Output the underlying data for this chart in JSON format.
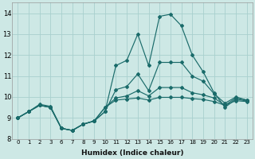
{
  "xlabel": "Humidex (Indice chaleur)",
  "bg_color": "#cde8e5",
  "grid_color": "#a8d0ce",
  "line_color": "#1a6b6a",
  "x_labels": [
    "0",
    "1",
    "2",
    "3",
    "6",
    "7",
    "8",
    "9",
    "10",
    "11",
    "12",
    "13",
    "14",
    "15",
    "16",
    "17",
    "18",
    "19",
    "20",
    "21",
    "22",
    "23"
  ],
  "ylim": [
    8.0,
    14.5
  ],
  "yticks": [
    8,
    9,
    10,
    11,
    12,
    13,
    14
  ],
  "lines": [
    {
      "y": [
        9.0,
        9.3,
        9.6,
        9.5,
        8.5,
        8.4,
        8.7,
        8.85,
        9.3,
        11.5,
        11.75,
        13.0,
        11.5,
        13.85,
        13.95,
        13.4,
        12.0,
        11.2,
        10.2,
        9.5,
        9.9,
        9.8
      ]
    },
    {
      "y": [
        9.0,
        9.3,
        9.6,
        9.5,
        8.5,
        8.4,
        8.7,
        8.85,
        9.3,
        10.35,
        10.5,
        11.1,
        10.3,
        11.65,
        11.65,
        11.65,
        11.0,
        10.75,
        10.15,
        9.7,
        10.0,
        9.85
      ]
    },
    {
      "y": [
        9.0,
        9.3,
        9.6,
        9.5,
        8.5,
        8.4,
        8.7,
        8.85,
        9.5,
        9.95,
        10.05,
        10.3,
        10.05,
        10.45,
        10.45,
        10.45,
        10.2,
        10.1,
        9.95,
        9.6,
        9.95,
        9.85
      ]
    },
    {
      "y": [
        9.0,
        9.3,
        9.65,
        9.55,
        8.5,
        8.4,
        8.7,
        8.85,
        9.5,
        9.85,
        9.9,
        9.95,
        9.85,
        9.98,
        9.98,
        9.98,
        9.92,
        9.88,
        9.78,
        9.6,
        9.82,
        9.78
      ]
    }
  ]
}
